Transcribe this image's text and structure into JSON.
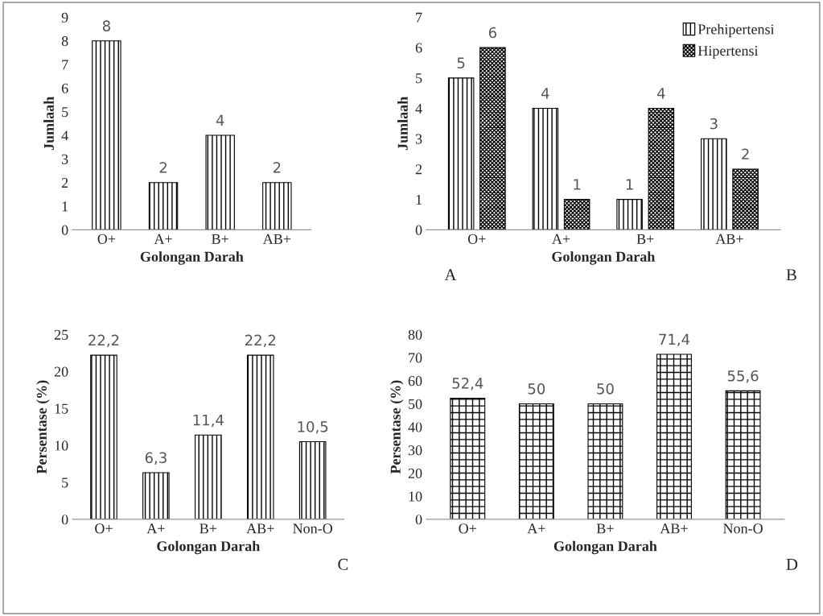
{
  "chart_data": [
    {
      "type": "bar",
      "categories": [
        "O+",
        "A+",
        "B+",
        "AB+"
      ],
      "series": [
        {
          "color": "#000000",
          "values": [
            8,
            2,
            4,
            2
          ]
        }
      ],
      "ylim": [
        0,
        9
      ],
      "yticks": [
        0,
        1,
        2,
        3,
        4,
        5,
        6,
        7,
        8,
        9
      ],
      "xlabel": "Golongan Darah",
      "ylabel": "Jumlaah",
      "data_labels": true,
      "grid": false,
      "annotations": [
        "A"
      ]
    },
    {
      "type": "bar",
      "categories": [
        "O+",
        "A+",
        "B+",
        "AB+"
      ],
      "series": [
        {
          "name": "Prehipertensi",
          "color": "#000000",
          "values": [
            5,
            4,
            1,
            3
          ]
        },
        {
          "name": "Hipertensi",
          "color": "#000000",
          "values": [
            6,
            1,
            4,
            2
          ]
        }
      ],
      "ylim": [
        0,
        7
      ],
      "yticks": [
        0,
        1,
        2,
        3,
        4,
        5,
        6,
        7
      ],
      "xlabel": "Golongan Darah",
      "ylabel": "Jumlaah",
      "data_labels": true,
      "grid": false,
      "legend": "top right",
      "annotations": [
        "B"
      ]
    },
    {
      "type": "bar",
      "categories": [
        "O+",
        "A+",
        "B+",
        "AB+",
        "Non-O"
      ],
      "series": [
        {
          "color": "#000000",
          "values": [
            22.2,
            6.3,
            11.4,
            22.2,
            10.5
          ],
          "value_labels": [
            "22,2",
            "6,3",
            "11,4",
            "22,2",
            "10,5"
          ]
        }
      ],
      "ylim": [
        0,
        25
      ],
      "yticks": [
        0,
        5,
        10,
        15,
        20,
        25
      ],
      "xlabel": "Golongan Darah",
      "ylabel": "Persentase (%)",
      "grid": false,
      "annotations": [
        "C"
      ]
    },
    {
      "type": "bar",
      "categories": [
        "O+",
        "A+",
        "B+",
        "AB+",
        "Non-O"
      ],
      "series": [
        {
          "color": "#000000",
          "values": [
            52.4,
            50,
            50,
            71.4,
            55.6
          ],
          "value_labels": [
            "52,4",
            "50",
            "50",
            "71,4",
            "55,6"
          ]
        }
      ],
      "ylim": [
        0,
        80
      ],
      "yticks": [
        0,
        10,
        20,
        30,
        40,
        50,
        60,
        70,
        80
      ],
      "xlabel": "Golongan Darah",
      "ylabel": "Persentase (%)",
      "grid": false,
      "annotations": [
        "D"
      ]
    }
  ]
}
